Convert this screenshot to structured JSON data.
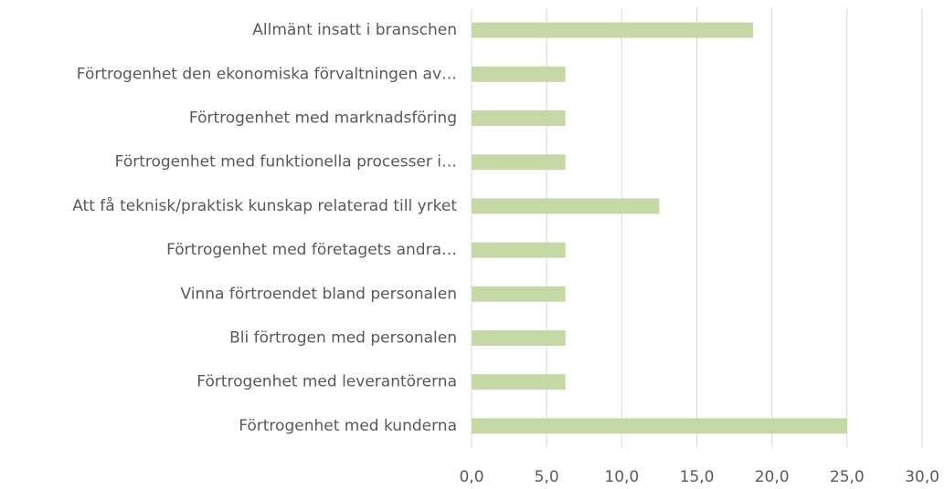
{
  "chart_data": {
    "type": "bar",
    "orientation": "horizontal",
    "categories": [
      "Allmänt insatt i branschen",
      "Förtrogenhet den ekonomiska förvaltningen av…",
      "Förtrogenhet med marknadsföring",
      "Förtrogenhet med funktionella processer i…",
      "Att få teknisk/praktisk kunskap relaterad till yrket",
      "Förtrogenhet med företagets andra…",
      "Vinna förtroendet bland personalen",
      "Bli förtrogen med personalen",
      "Förtrogenhet med leverantörerna",
      "Förtrogenhet med kunderna"
    ],
    "values": [
      18.75,
      6.25,
      6.25,
      6.25,
      12.5,
      6.25,
      6.25,
      6.25,
      6.25,
      25
    ],
    "color": "#c5d8a6",
    "xlim": [
      0,
      30
    ],
    "xticks": [
      {
        "value": 0,
        "label": "0,0"
      },
      {
        "value": 5,
        "label": "5,0"
      },
      {
        "value": 10,
        "label": "10,0"
      },
      {
        "value": 15,
        "label": "15,0"
      },
      {
        "value": 20,
        "label": "20,0"
      },
      {
        "value": 25,
        "label": "25,0"
      },
      {
        "value": 30,
        "label": "30,0"
      }
    ],
    "grid": true
  }
}
